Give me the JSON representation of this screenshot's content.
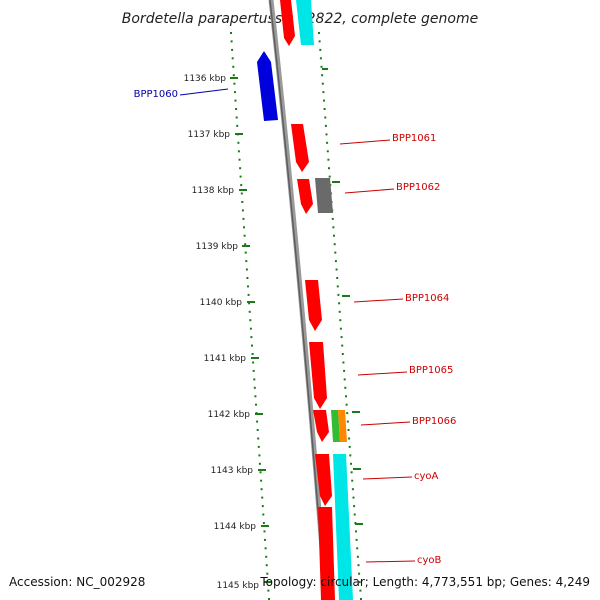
{
  "title": "Bordetella parapertussis 12822, complete genome",
  "footer": {
    "accession": "Accession: NC_002928",
    "summary": "Topology: circular; Length: 4,773,551 bp; Genes: 4,249"
  },
  "ticks": [
    "1136 kbp",
    "1137 kbp",
    "1138 kbp",
    "1139 kbp",
    "1140 kbp",
    "1141 kbp",
    "1142 kbp",
    "1143 kbp",
    "1144 kbp",
    "1145 kbp"
  ],
  "gene_labels": [
    {
      "text": "BPP1060",
      "color": "#0000aa"
    },
    {
      "text": "BPP1061",
      "color": "#cc0000"
    },
    {
      "text": "BPP1062",
      "color": "#cc0000"
    },
    {
      "text": "BPP1064",
      "color": "#cc0000"
    },
    {
      "text": "BPP1065",
      "color": "#cc0000"
    },
    {
      "text": "BPP1066",
      "color": "#cc0000"
    },
    {
      "text": "cyoA",
      "color": "#cc0000"
    },
    {
      "text": "cyoB",
      "color": "#cc0000"
    }
  ],
  "colors": {
    "forward_gene": "#ff0000",
    "reverse_gene": "#0000dd",
    "gray_gene": "#6a6a6a",
    "green_gene": "#33bb33",
    "orange_gene": "#ff8800",
    "cyan_feature": "#00e5e5",
    "backbone": "#888888",
    "dots": "#1a7a1a"
  }
}
